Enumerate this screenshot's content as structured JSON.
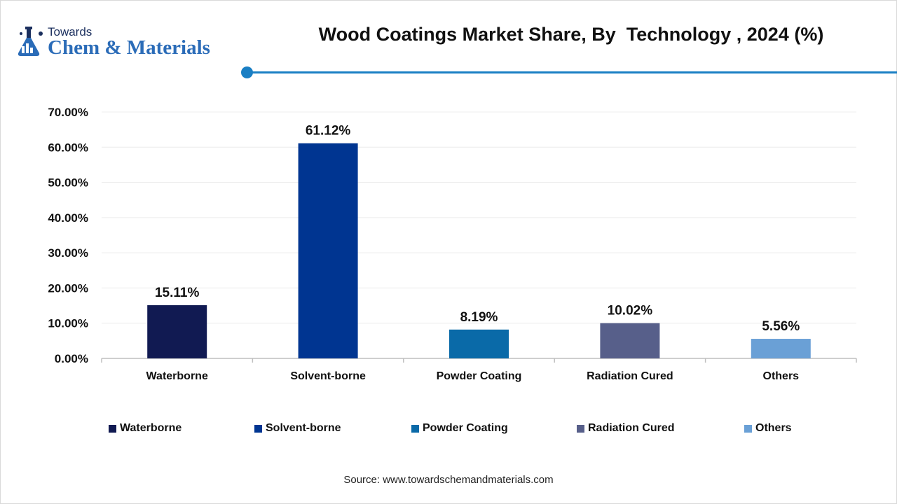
{
  "brand": {
    "line1": "Towards",
    "line2": "Chem & Materials",
    "accent_color": "#1a7fc4"
  },
  "title": "Wood Coatings Market Share, By  Technology , 2024 (%)",
  "source": "Source: www.towardschemandmaterials.com",
  "chart_data": {
    "type": "bar",
    "title": "Wood Coatings Market Share, By  Technology , 2024 (%)",
    "categories": [
      "Waterborne",
      "Solvent-borne",
      "Powder Coating",
      "Radiation Cured",
      "Others"
    ],
    "values": [
      15.11,
      61.12,
      8.19,
      10.02,
      5.56
    ],
    "value_labels": [
      "15.11%",
      "61.12%",
      "8.19%",
      "10.02%",
      "5.56%"
    ],
    "colors": [
      "#111a52",
      "#003591",
      "#0a6aa8",
      "#575f8a",
      "#6aa0d6"
    ],
    "ylim": [
      0,
      70
    ],
    "yticks": [
      0,
      10,
      20,
      30,
      40,
      50,
      60,
      70
    ],
    "ytick_labels": [
      "0.00%",
      "10.00%",
      "20.00%",
      "30.00%",
      "40.00%",
      "50.00%",
      "60.00%",
      "70.00%"
    ],
    "grid": true,
    "legend_position": "bottom"
  }
}
